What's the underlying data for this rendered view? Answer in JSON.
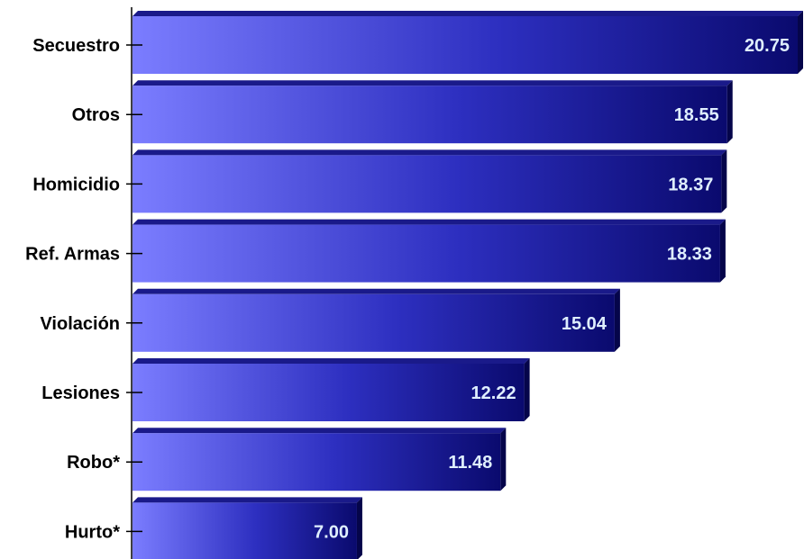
{
  "chart_data": {
    "type": "bar",
    "orientation": "horizontal",
    "categories": [
      "Secuestro",
      "Otros",
      "Homicidio",
      "Ref. Armas",
      "Violación",
      "Lesiones",
      "Robo*",
      "Hurto*"
    ],
    "values": [
      20.75,
      18.55,
      18.37,
      18.33,
      15.04,
      12.22,
      11.48,
      7.0
    ],
    "value_labels": [
      "20.75",
      "18.55",
      "18.37",
      "18.33",
      "15.04",
      "12.22",
      "11.48",
      "7.00"
    ],
    "title": "",
    "xlabel": "",
    "ylabel": "",
    "xlim": [
      0,
      20.75
    ],
    "grid": false,
    "legend": "none",
    "colors": {
      "bar_light": "#7b7dff",
      "bar_dark": "#0a0a6e",
      "bar_edge": "#05054a",
      "value_text": "#dfefff",
      "axis": "#000000"
    }
  }
}
